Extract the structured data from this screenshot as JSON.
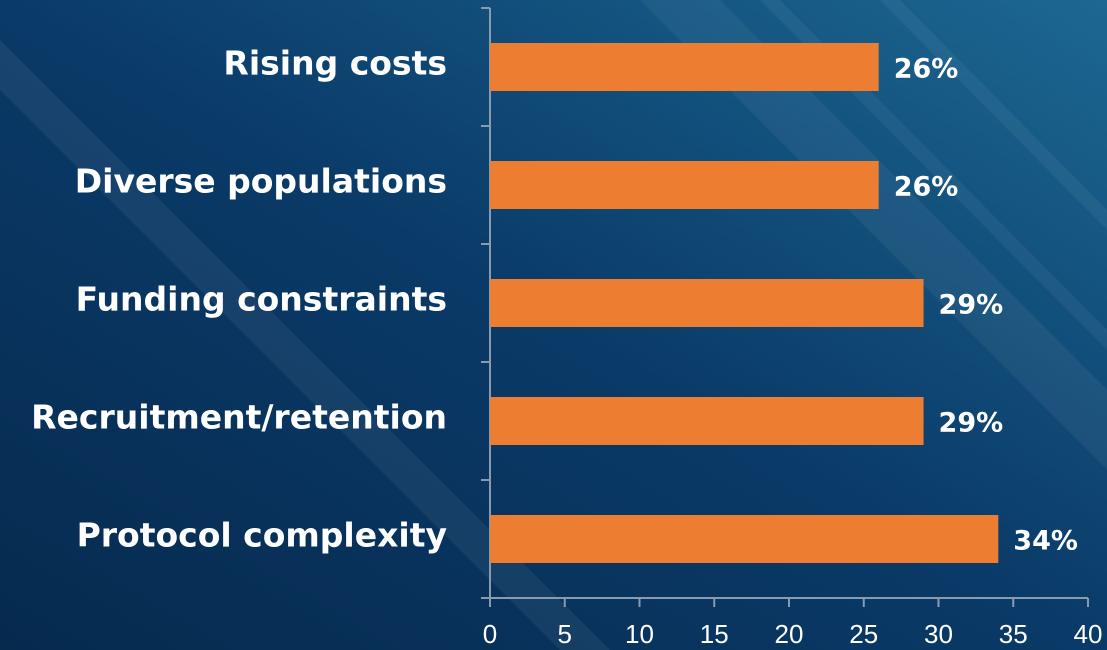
{
  "chart_data": {
    "type": "barh",
    "categories": [
      "Rising costs",
      "Diverse populations",
      "Funding constraints",
      "Recruitment/retention",
      "Protocol complexity"
    ],
    "values": [
      26,
      26,
      29,
      29,
      34
    ],
    "value_labels": [
      "26%",
      "26%",
      "29%",
      "29%",
      "34%"
    ],
    "color": "#ed7d31",
    "xlim": [
      0,
      40
    ],
    "xticks": [
      0,
      5,
      10,
      15,
      20,
      25,
      30,
      35,
      40
    ],
    "grid": false
  }
}
